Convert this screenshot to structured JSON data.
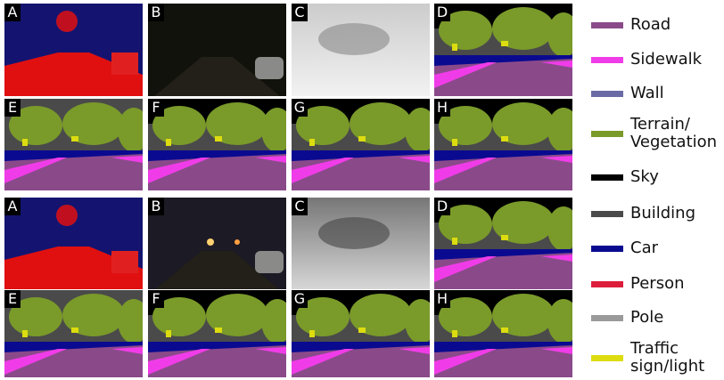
{
  "panels": [
    {
      "rows": [
        [
          "A",
          "B",
          "C",
          "D"
        ],
        [
          "E",
          "F",
          "G",
          "H"
        ]
      ]
    },
    {
      "rows": [
        [
          "A",
          "B",
          "C",
          "D"
        ],
        [
          "E",
          "F",
          "G",
          "H"
        ]
      ]
    }
  ],
  "legend": [
    {
      "label": "Road",
      "color": "#8a4a8a"
    },
    {
      "label": "Sidewalk",
      "color": "#f03ce8"
    },
    {
      "label": "Wall",
      "color": "#6a6aa6"
    },
    {
      "label": "Terrain/ Vegetation",
      "color": "#7a9a2a"
    },
    {
      "label": "Sky",
      "color": "#000000"
    },
    {
      "label": "Building",
      "color": "#4a4a4a"
    },
    {
      "label": "Car",
      "color": "#0a0a90"
    },
    {
      "label": "Person",
      "color": "#dc1e3c"
    },
    {
      "label": "Pole",
      "color": "#9a9a9a"
    },
    {
      "label": "Traffic sign/light",
      "color": "#dcdc10"
    }
  ]
}
